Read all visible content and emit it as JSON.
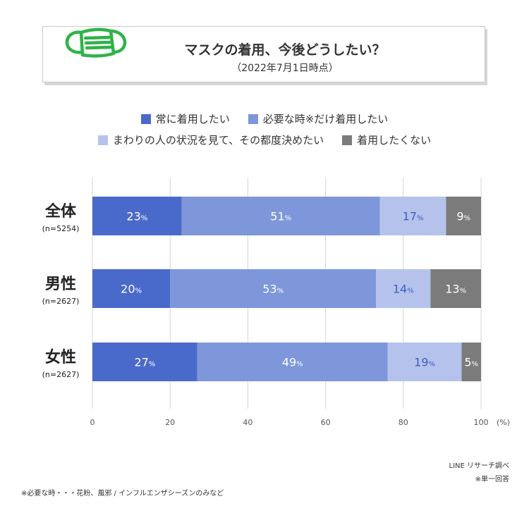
{
  "header": {
    "title": "マスクの着用、今後どうしたい？",
    "subtitle": "（2022年7月1日時点）",
    "icon": "mask-icon"
  },
  "colors": {
    "always": "#4a6acb",
    "when_needed": "#7d97da",
    "situational": "#b5c3ec",
    "dont_want": "#7b7b7b",
    "grid": "#d4d4d4",
    "icon": "#2fb34a"
  },
  "chart_data": {
    "type": "bar",
    "orientation": "horizontal",
    "stacked": true,
    "categories": [
      {
        "label": "全体",
        "n": "(n=5254)"
      },
      {
        "label": "男性",
        "n": "(n=2627)"
      },
      {
        "label": "女性",
        "n": "(n=2627)"
      }
    ],
    "series": [
      {
        "name": "常に着用したい",
        "values": [
          23,
          20,
          27
        ],
        "color": "#4a6acb",
        "label_color": "#ffffff"
      },
      {
        "name": "必要な時※だけ着用したい",
        "values": [
          51,
          53,
          49
        ],
        "color": "#7d97da",
        "label_color": "#ffffff"
      },
      {
        "name": "まわりの人の状況を見て、その都度決めたい",
        "values": [
          17,
          14,
          19
        ],
        "color": "#b5c3ec",
        "label_color": "#3d5cc2"
      },
      {
        "name": "着用したくない",
        "values": [
          9,
          13,
          5
        ],
        "color": "#7b7b7b",
        "label_color": "#ffffff"
      }
    ],
    "xlim": [
      0,
      100
    ],
    "xticks": [
      "0",
      "20",
      "40",
      "60",
      "80",
      "100"
    ],
    "xunit": "(%)",
    "value_suffix": "%",
    "grid": true,
    "legend_position": "top"
  },
  "footer": {
    "source": "LINE リサーチ調べ",
    "answer_type": "※単一回答",
    "footnote": "※必要な時・・・花粉、風邪 / インフルエンザシーズンのみなど"
  }
}
